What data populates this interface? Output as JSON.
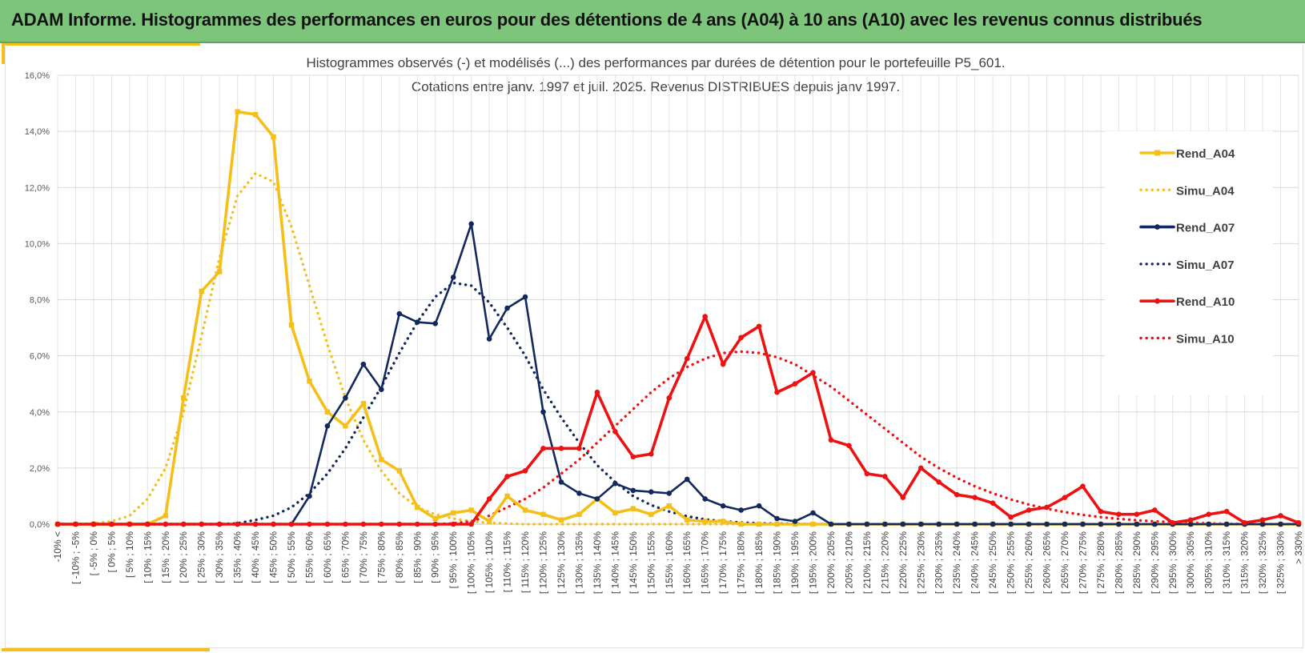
{
  "banner": {
    "title": "ADAM Informe. Histogrammes des performances en euros pour des détentions de 4 ans (A04) à 10 ans (A10) avec les revenus connus distribués"
  },
  "colors": {
    "banner_bg": "#7dc57a",
    "accent_yellow": "#f5bf1a",
    "A04": "#f5bf1a",
    "A07": "#13295e",
    "A10": "#ee1111",
    "grid": "#d9d9d9"
  },
  "chart_data": {
    "type": "line",
    "title": "Histogrammes observés (-) et modélisés (...) des performances par durées de détention pour le portefeuille P5_601.",
    "subtitle": "Cotations entre janv. 1997 et juil. 2025. Revenus DISTRIBUES depuis janv 1997.",
    "xlabel": "",
    "ylabel": "",
    "ylim": [
      0,
      0.16
    ],
    "yticks": [
      "0,0%",
      "2,0%",
      "4,0%",
      "6,0%",
      "8,0%",
      "10,0%",
      "12,0%",
      "14,0%",
      "16,0%"
    ],
    "grid": true,
    "legend_position": "right",
    "categories": [
      "-10% <",
      "[ -10% ; -5%",
      "[ -5% ; 0%",
      "[ 0% ; 5%",
      "[ 5% ; 10%",
      "[ 10% ; 15%",
      "[ 15% ; 20%",
      "[ 20% ; 25%",
      "[ 25% ; 30%",
      "[ 30% ; 35%",
      "[ 35% ; 40%",
      "[ 40% ; 45%",
      "[ 45% ; 50%",
      "[ 50% ; 55%",
      "[ 55% ; 60%",
      "[ 60% ; 65%",
      "[ 65% ; 70%",
      "[ 70% ; 75%",
      "[ 75% ; 80%",
      "[ 80% ; 85%",
      "[ 85% ; 90%",
      "[ 90% ; 95%",
      "[ 95% ; 100%",
      "[ 100% ; 105%",
      "[ 105% ; 110%",
      "[ 110% ; 115%",
      "[ 115% ; 120%",
      "[ 120% ; 125%",
      "[ 125% ; 130%",
      "[ 130% ; 135%",
      "[ 135% ; 140%",
      "[ 140% ; 145%",
      "[ 145% ; 150%",
      "[ 150% ; 155%",
      "[ 155% ; 160%",
      "[ 160% ; 165%",
      "[ 165% ; 170%",
      "[ 170% ; 175%",
      "[ 175% ; 180%",
      "[ 180% ; 185%",
      "[ 185% ; 190%",
      "[ 190% ; 195%",
      "[ 195% ; 200%",
      "[ 200% ; 205%",
      "[ 205% ; 210%",
      "[ 210% ; 215%",
      "[ 215% ; 220%",
      "[ 220% ; 225%",
      "[ 225% ; 230%",
      "[ 230% ; 235%",
      "[ 235% ; 240%",
      "[ 240% ; 245%",
      "[ 245% ; 250%",
      "[ 250% ; 255%",
      "[ 255% ; 260%",
      "[ 260% ; 265%",
      "[ 265% ; 270%",
      "[ 270% ; 275%",
      "[ 275% ; 280%",
      "[ 280% ; 285%",
      "[ 285% ; 290%",
      "[ 290% ; 295%",
      "[ 295% ; 300%",
      "[ 300% ; 305%",
      "[ 305% ; 310%",
      "[ 310% ; 315%",
      "[ 315% ; 320%",
      "[ 320% ; 325%",
      "[ 325% ; 330%",
      "> 330%"
    ],
    "series": [
      {
        "name": "Rend_A04",
        "color": "#f5bf1a",
        "style": "solid",
        "marker": "square",
        "values": [
          0,
          0,
          0,
          0,
          0,
          0,
          0.003,
          0.045,
          0.083,
          0.09,
          0.147,
          0.146,
          0.138,
          0.071,
          0.051,
          0.04,
          0.035,
          0.043,
          0.023,
          0.019,
          0.006,
          0.002,
          0.004,
          0.005,
          0.001,
          0.01,
          0.005,
          0.0035,
          0.0015,
          0.0035,
          0.009,
          0.004,
          0.0055,
          0.0035,
          0.0065,
          0.0015,
          0.001,
          0.001,
          0,
          0,
          0,
          0,
          0,
          0,
          0,
          0,
          0,
          0,
          0,
          0,
          0,
          0,
          0,
          0,
          0,
          0,
          0,
          0,
          0,
          0,
          0,
          0,
          0,
          0,
          0,
          0,
          0,
          0,
          0,
          0
        ]
      },
      {
        "name": "Simu_A04",
        "color": "#f5bf1a",
        "style": "dotted",
        "marker": "none",
        "values": [
          0,
          0,
          0.0003,
          0.001,
          0.003,
          0.009,
          0.02,
          0.04,
          0.067,
          0.095,
          0.117,
          0.125,
          0.122,
          0.106,
          0.085,
          0.064,
          0.045,
          0.03,
          0.019,
          0.011,
          0.006,
          0.0035,
          0.002,
          0.001,
          0.0005,
          0.0002,
          0,
          0,
          0,
          0,
          0,
          0,
          0,
          0,
          0,
          0,
          0,
          0,
          0,
          0,
          0,
          0,
          0,
          0,
          0,
          0,
          0,
          0,
          0,
          0,
          0,
          0,
          0,
          0,
          0,
          0,
          0,
          0,
          0,
          0,
          0,
          0,
          0,
          0,
          0,
          0,
          0,
          0,
          0,
          0
        ]
      },
      {
        "name": "Rend_A07",
        "color": "#13295e",
        "style": "solid",
        "marker": "circle",
        "values": [
          0,
          0,
          0,
          0,
          0,
          0,
          0,
          0,
          0,
          0,
          0,
          0,
          0,
          0,
          0.01,
          0.035,
          0.045,
          0.057,
          0.048,
          0.075,
          0.072,
          0.0715,
          0.088,
          0.107,
          0.066,
          0.077,
          0.081,
          0.04,
          0.015,
          0.011,
          0.009,
          0.0145,
          0.012,
          0.0115,
          0.011,
          0.016,
          0.009,
          0.0065,
          0.005,
          0.0065,
          0.002,
          0.001,
          0.004,
          0,
          0,
          0,
          0,
          0,
          0,
          0,
          0,
          0,
          0,
          0,
          0,
          0,
          0,
          0,
          0,
          0,
          0,
          0,
          0,
          0,
          0,
          0,
          0,
          0,
          0,
          0
        ]
      },
      {
        "name": "Simu_A07",
        "color": "#13295e",
        "style": "dotted",
        "marker": "none",
        "values": [
          0,
          0,
          0,
          0,
          0,
          0,
          0,
          0,
          0,
          0,
          0.0003,
          0.0015,
          0.003,
          0.006,
          0.011,
          0.018,
          0.027,
          0.038,
          0.049,
          0.061,
          0.072,
          0.081,
          0.086,
          0.085,
          0.079,
          0.07,
          0.06,
          0.048,
          0.038,
          0.029,
          0.021,
          0.015,
          0.01,
          0.0068,
          0.0045,
          0.0028,
          0.0017,
          0.001,
          0.0006,
          0.0003,
          0.0002,
          0.0001,
          0,
          0,
          0,
          0,
          0,
          0,
          0,
          0,
          0,
          0,
          0,
          0,
          0,
          0,
          0,
          0,
          0,
          0,
          0,
          0,
          0,
          0,
          0,
          0,
          0,
          0,
          0,
          0
        ]
      },
      {
        "name": "Rend_A10",
        "color": "#ee1111",
        "style": "solid",
        "marker": "circle",
        "values": [
          0,
          0,
          0,
          0,
          0,
          0,
          0,
          0,
          0,
          0,
          0,
          0,
          0,
          0,
          0,
          0,
          0,
          0,
          0,
          0,
          0,
          0,
          0,
          0,
          0.009,
          0.017,
          0.019,
          0.027,
          0.027,
          0.027,
          0.047,
          0.033,
          0.024,
          0.025,
          0.045,
          0.059,
          0.074,
          0.057,
          0.0665,
          0.0705,
          0.047,
          0.05,
          0.054,
          0.03,
          0.028,
          0.018,
          0.017,
          0.0095,
          0.02,
          0.015,
          0.0105,
          0.0095,
          0.0075,
          0.0025,
          0.005,
          0.006,
          0.0095,
          0.0135,
          0.0045,
          0.0035,
          0.0035,
          0.005,
          0.0005,
          0.0015,
          0.0035,
          0.0045,
          0.0005,
          0.0015,
          0.003,
          0.0005
        ]
      },
      {
        "name": "Simu_A10",
        "color": "#ee1111",
        "style": "dotted",
        "marker": "none",
        "values": [
          0,
          0,
          0,
          0,
          0,
          0,
          0,
          0,
          0,
          0,
          0,
          0,
          0,
          0,
          0,
          0,
          0,
          0,
          0,
          0,
          0,
          0,
          0.0003,
          0.001,
          0.003,
          0.006,
          0.009,
          0.013,
          0.018,
          0.023,
          0.029,
          0.035,
          0.041,
          0.047,
          0.052,
          0.056,
          0.059,
          0.061,
          0.0615,
          0.061,
          0.0595,
          0.057,
          0.053,
          0.049,
          0.044,
          0.039,
          0.034,
          0.029,
          0.024,
          0.02,
          0.0165,
          0.0135,
          0.011,
          0.0088,
          0.007,
          0.0055,
          0.0043,
          0.0033,
          0.0025,
          0.0019,
          0.0014,
          0.001,
          0.0007,
          0.0005,
          0.0003,
          0.0002,
          0.0001,
          0,
          0,
          0
        ]
      }
    ]
  }
}
